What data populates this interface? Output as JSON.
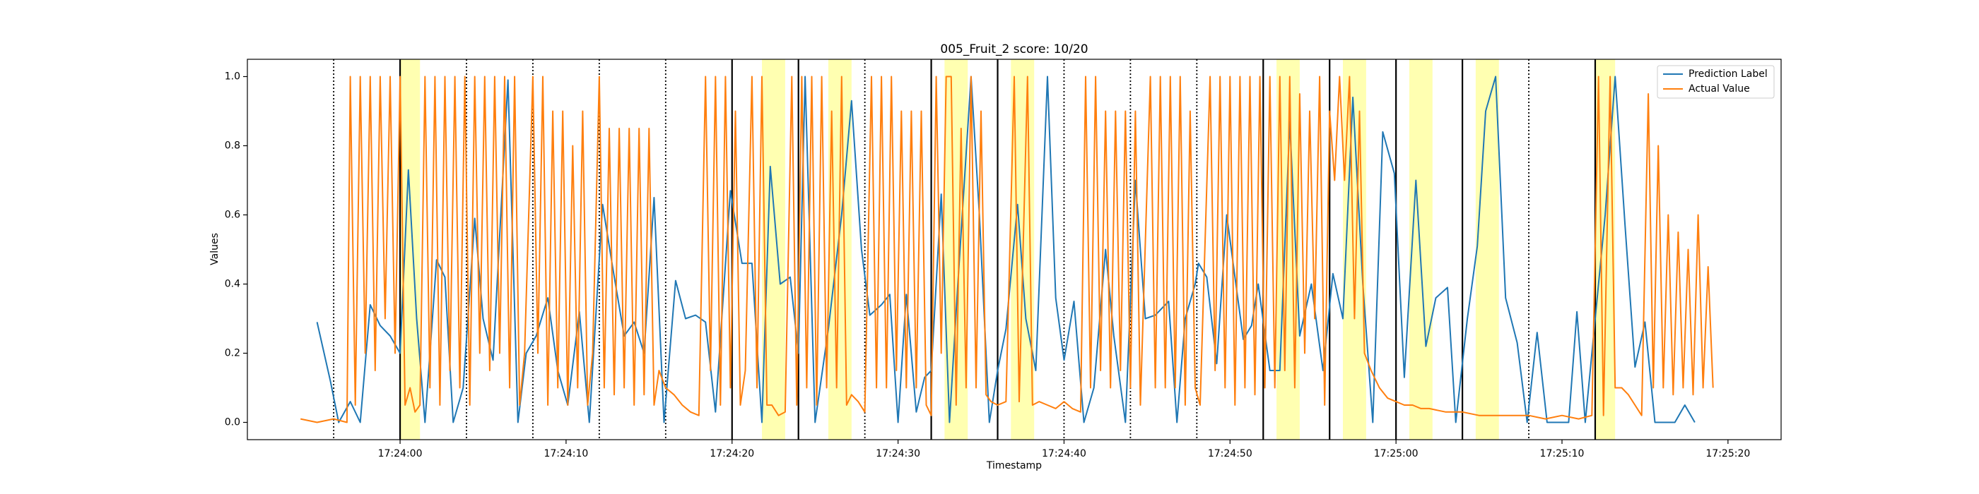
{
  "chart_data": {
    "type": "line",
    "title": "005_Fruit_2 score: 10/20",
    "x_label": "Timestamp",
    "y_label": "Values",
    "xlim": [
      -9.2,
      83.2
    ],
    "ylim": [
      -0.05,
      1.05
    ],
    "xticks": [
      {
        "value": 0,
        "label": "17:24:00"
      },
      {
        "value": 10,
        "label": "17:24:10"
      },
      {
        "value": 20,
        "label": "17:24:20"
      },
      {
        "value": 30,
        "label": "17:24:30"
      },
      {
        "value": 40,
        "label": "17:24:40"
      },
      {
        "value": 50,
        "label": "17:24:50"
      },
      {
        "value": 60,
        "label": "17:25:00"
      },
      {
        "value": 70,
        "label": "17:25:10"
      },
      {
        "value": 80,
        "label": "17:25:20"
      }
    ],
    "yticks": [
      {
        "value": 0,
        "label": "0.0"
      },
      {
        "value": 0.2,
        "label": "0.2"
      },
      {
        "value": 0.4,
        "label": "0.4"
      },
      {
        "value": 0.6,
        "label": "0.6"
      },
      {
        "value": 0.8,
        "label": "0.8"
      },
      {
        "value": 1,
        "label": "1.0"
      }
    ],
    "legend": "upper right",
    "span_color": "#ffffa8",
    "spans": [
      [
        0,
        1.2
      ],
      [
        21.8,
        23.2
      ],
      [
        25.8,
        27.2
      ],
      [
        32.8,
        34.2
      ],
      [
        36.8,
        38.2
      ],
      [
        52.8,
        54.2
      ],
      [
        56.8,
        58.2
      ],
      [
        60.8,
        62.2
      ],
      [
        64.8,
        66.2
      ],
      [
        72,
        73.2
      ]
    ],
    "vlines": [
      {
        "x": -4,
        "style": "dotted"
      },
      {
        "x": 0,
        "style": "solid"
      },
      {
        "x": 4,
        "style": "dotted"
      },
      {
        "x": 8,
        "style": "dotted"
      },
      {
        "x": 12,
        "style": "dotted"
      },
      {
        "x": 16,
        "style": "dotted"
      },
      {
        "x": 20,
        "style": "solid"
      },
      {
        "x": 24,
        "style": "solid"
      },
      {
        "x": 28,
        "style": "dotted"
      },
      {
        "x": 32,
        "style": "solid"
      },
      {
        "x": 36,
        "style": "solid"
      },
      {
        "x": 40,
        "style": "dotted"
      },
      {
        "x": 44,
        "style": "dotted"
      },
      {
        "x": 48,
        "style": "dotted"
      },
      {
        "x": 52,
        "style": "solid"
      },
      {
        "x": 56,
        "style": "solid"
      },
      {
        "x": 60,
        "style": "solid"
      },
      {
        "x": 64,
        "style": "solid"
      },
      {
        "x": 68,
        "style": "dotted"
      },
      {
        "x": 72,
        "style": "solid"
      }
    ],
    "series": [
      {
        "name": "Prediction Label",
        "color": "#1f77b4",
        "x": [
          -5,
          -4.2,
          -3.7,
          -3,
          -2.4,
          -1.8,
          -1.2,
          -0.6,
          0,
          0.5,
          1,
          1.5,
          2.2,
          2.7,
          3.2,
          3.8,
          4.5,
          5,
          5.6,
          6.5,
          7.1,
          7.6,
          8.2,
          8.9,
          9.5,
          10.1,
          10.8,
          11.4,
          12.2,
          12.8,
          13.5,
          14.1,
          14.7,
          15.3,
          15.9,
          16.6,
          17.2,
          17.8,
          18.4,
          19,
          19.9,
          20.6,
          21.2,
          21.8,
          22.3,
          22.9,
          23.5,
          24,
          24.4,
          25,
          25.8,
          26.6,
          27.2,
          27.8,
          28.3,
          29,
          29.5,
          30,
          30.5,
          31.1,
          31.6,
          32,
          32.6,
          33.1,
          33.6,
          34.4,
          34.9,
          35.5,
          36,
          36.5,
          37.2,
          37.7,
          38.3,
          39,
          39.5,
          40,
          40.6,
          41.2,
          41.8,
          42.5,
          43,
          43.7,
          44.3,
          44.9,
          45.5,
          46.3,
          46.8,
          47.3,
          47.9,
          48.1,
          48.6,
          49.2,
          49.8,
          50.3,
          50.8,
          51.3,
          51.7,
          52.4,
          53,
          53.6,
          54.2,
          54.9,
          55.6,
          56.2,
          56.8,
          57.4,
          58,
          58.6,
          59.2,
          59.9,
          60.5,
          61.2,
          61.8,
          62.4,
          63.1,
          63.6,
          64.3,
          64.9,
          65.4,
          66,
          66.6,
          67.3,
          67.9,
          68.5,
          69.1,
          69.8,
          70.4,
          70.9,
          71.4,
          72,
          72.6,
          73.2,
          73.8,
          74.4,
          75,
          75.6,
          76.2,
          76.8,
          77.4,
          78
        ],
        "values": [
          0.29,
          0.12,
          0,
          0.06,
          0,
          0.34,
          0.28,
          0.25,
          0.2,
          0.73,
          0.3,
          0,
          0.47,
          0.42,
          0,
          0.1,
          0.59,
          0.3,
          0.18,
          0.99,
          0,
          0.2,
          0.25,
          0.36,
          0.15,
          0.05,
          0.32,
          0,
          0.63,
          0.45,
          0.25,
          0.29,
          0.2,
          0.65,
          0,
          0.41,
          0.3,
          0.31,
          0.29,
          0.03,
          0.67,
          0.46,
          0.46,
          0,
          0.74,
          0.4,
          0.42,
          0.2,
          1,
          0,
          0.27,
          0.6,
          0.93,
          0.5,
          0.31,
          0.34,
          0.37,
          0,
          0.37,
          0.03,
          0.13,
          0.15,
          0.66,
          0,
          0.4,
          1,
          0.6,
          0,
          0.15,
          0.27,
          0.63,
          0.3,
          0.15,
          1,
          0.36,
          0.18,
          0.35,
          0,
          0.1,
          0.5,
          0.25,
          0,
          0.7,
          0.3,
          0.31,
          0.35,
          0,
          0.3,
          0.4,
          0.46,
          0.42,
          0.17,
          0.6,
          0.42,
          0.24,
          0.28,
          0.4,
          0.15,
          0.15,
          0.87,
          0.25,
          0.4,
          0.15,
          0.43,
          0.3,
          0.94,
          0.4,
          0,
          0.84,
          0.72,
          0.13,
          0.7,
          0.22,
          0.36,
          0.39,
          0,
          0.3,
          0.51,
          0.9,
          1,
          0.36,
          0.23,
          0,
          0.26,
          0,
          0,
          0,
          0.32,
          0,
          0.3,
          0.6,
          1,
          0.57,
          0.16,
          0.29,
          0,
          0,
          0,
          0.05,
          0
        ]
      },
      {
        "name": "Actual Value",
        "color": "#ff7f0e",
        "x": [
          -6,
          -5,
          -4,
          -3.2,
          -3,
          -2.7,
          -2.4,
          -2.1,
          -1.8,
          -1.5,
          -1.2,
          -0.9,
          -0.6,
          -0.3,
          0,
          0.3,
          0.6,
          0.9,
          1.2,
          1.5,
          1.8,
          2.1,
          2.4,
          2.7,
          3,
          3.3,
          3.6,
          3.9,
          4.2,
          4.5,
          4.8,
          5.1,
          5.4,
          5.7,
          6,
          6.3,
          6.6,
          6.9,
          7.2,
          7.5,
          8,
          8.3,
          8.6,
          8.9,
          9.2,
          9.5,
          9.8,
          10.1,
          10.4,
          10.7,
          11,
          11.3,
          11.6,
          12,
          12.3,
          12.6,
          12.9,
          13.2,
          13.5,
          13.8,
          14.1,
          14.4,
          14.7,
          15,
          15.3,
          15.6,
          16,
          16.5,
          17,
          17.5,
          18,
          18.4,
          18.7,
          19,
          19.3,
          19.6,
          19.9,
          20.2,
          20.5,
          20.8,
          21.2,
          21.5,
          21.8,
          22.1,
          22.4,
          22.8,
          23.2,
          23.6,
          23.9,
          24.2,
          24.5,
          24.8,
          25.1,
          25.4,
          25.7,
          26,
          26.3,
          26.6,
          26.9,
          27.2,
          27.6,
          28,
          28.4,
          28.7,
          29,
          29.3,
          29.6,
          29.9,
          30.2,
          30.5,
          30.8,
          31.1,
          31.4,
          31.7,
          32,
          32.3,
          32.6,
          32.9,
          33.2,
          33.5,
          33.8,
          34.1,
          34.4,
          34.7,
          35,
          35.3,
          35.6,
          36,
          36.5,
          37,
          37.3,
          37.8,
          38.1,
          38.5,
          39,
          39.5,
          40,
          40.5,
          41,
          41.3,
          41.6,
          41.9,
          42.2,
          42.5,
          42.8,
          43.1,
          43.4,
          43.7,
          44,
          44.3,
          44.6,
          45.2,
          45.5,
          45.8,
          46.1,
          46.4,
          46.7,
          47,
          47.3,
          47.6,
          47.9,
          48.2,
          48.8,
          49.1,
          49.4,
          49.7,
          50,
          50.3,
          50.6,
          50.9,
          51.2,
          51.5,
          51.8,
          52.1,
          52.4,
          52.7,
          53,
          53.3,
          53.6,
          53.9,
          54.2,
          54.5,
          54.8,
          55.1,
          55.4,
          55.7,
          56,
          56.3,
          56.6,
          56.9,
          57.2,
          57.5,
          57.8,
          58.1,
          58.5,
          59,
          59.5,
          60,
          60.5,
          61,
          61.5,
          62,
          63,
          64,
          65,
          66,
          67,
          68,
          69,
          70,
          71,
          71.8,
          72.2,
          72.5,
          72.9,
          73.2,
          73.6,
          74,
          74.4,
          74.8,
          75.2,
          75.5,
          75.8,
          76.1,
          76.4,
          76.7,
          77,
          77.3,
          77.6,
          77.9,
          78.2,
          78.5,
          78.8,
          79.1
        ],
        "values": [
          0.01,
          0,
          0.01,
          0,
          1,
          0.05,
          1,
          0.2,
          1,
          0.15,
          1,
          0.3,
          1,
          0.2,
          1,
          0.05,
          0.1,
          0.03,
          0.05,
          1,
          0.1,
          1,
          0.05,
          1,
          0.15,
          1,
          0.1,
          1,
          0.05,
          1,
          0.2,
          1,
          0.15,
          1,
          0.2,
          1,
          0.1,
          1,
          0.05,
          0.2,
          1,
          0.2,
          1,
          0.05,
          0.9,
          0.1,
          0.9,
          0.05,
          0.8,
          0.1,
          0.9,
          0.05,
          0.2,
          1,
          0.1,
          0.85,
          0.08,
          0.85,
          0.1,
          0.85,
          0.05,
          0.85,
          0.08,
          0.85,
          0.05,
          0.15,
          0.1,
          0.08,
          0.05,
          0.03,
          0.02,
          1,
          0.15,
          1,
          0.05,
          1,
          0.1,
          0.9,
          0.05,
          0.15,
          1,
          0.1,
          1,
          0.05,
          0.05,
          0.02,
          0.03,
          1,
          0.05,
          1,
          0.1,
          1,
          0.05,
          1,
          0.1,
          0.9,
          0.1,
          1,
          0.05,
          0.08,
          0.06,
          0.03,
          1,
          0.1,
          1,
          0.1,
          1,
          0.15,
          0.9,
          0.1,
          0.9,
          0.1,
          0.9,
          0.05,
          0.02,
          1,
          0.2,
          1,
          1,
          0.05,
          0.85,
          0.1,
          1,
          0.1,
          0.9,
          0.08,
          0.06,
          0.05,
          0.06,
          1,
          0.06,
          1,
          0.05,
          0.06,
          0.05,
          0.04,
          0.06,
          0.04,
          0.03,
          1,
          0.1,
          1,
          0.15,
          0.9,
          0.1,
          0.9,
          0.15,
          0.9,
          0.1,
          0.9,
          0.05,
          1,
          0.1,
          1,
          0.1,
          1,
          0.1,
          1,
          0.05,
          0.9,
          0.1,
          0.05,
          1,
          0.15,
          1,
          0.1,
          1,
          0.05,
          1,
          0.1,
          1,
          0.08,
          1,
          0.1,
          1,
          0.1,
          1,
          0.15,
          1,
          0.1,
          0.95,
          0.2,
          0.9,
          0.3,
          1,
          0.05,
          0.9,
          0.7,
          1,
          0.7,
          1,
          0.3,
          0.9,
          0.2,
          0.15,
          0.1,
          0.07,
          0.06,
          0.05,
          0.05,
          0.04,
          0.04,
          0.03,
          0.03,
          0.02,
          0.02,
          0.02,
          0.02,
          0.01,
          0.02,
          0.01,
          0.02,
          1,
          0.02,
          1,
          0.1,
          0.1,
          0.08,
          0.05,
          0.02,
          0.95,
          0.1,
          0.8,
          0.1,
          0.6,
          0.08,
          0.55,
          0.1,
          0.5,
          0.08,
          0.6,
          0.1,
          0.45,
          0.1
        ]
      }
    ]
  }
}
